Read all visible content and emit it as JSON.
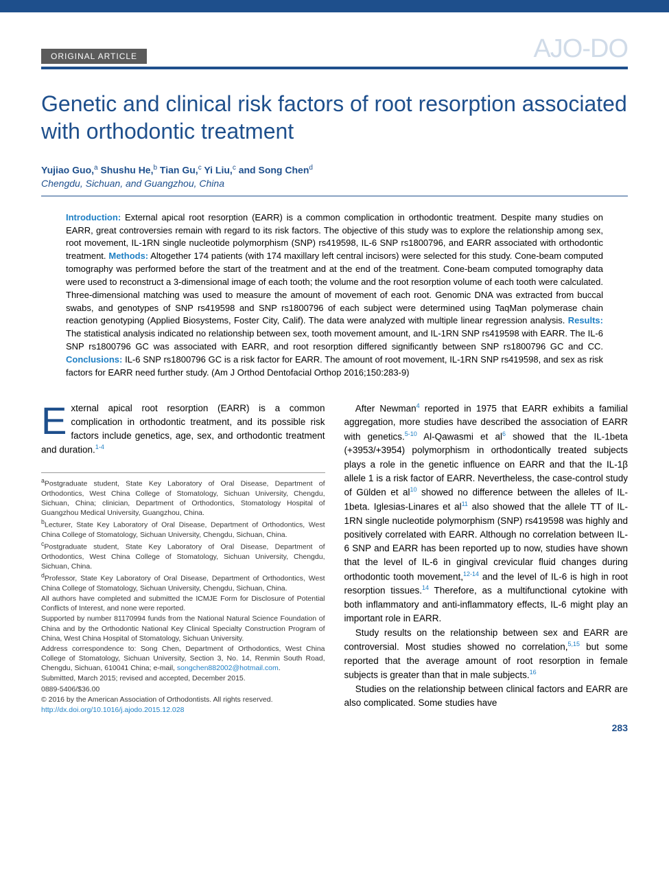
{
  "header": {
    "badge": "ORIGINAL ARTICLE",
    "journal_logo": "AJO-DO"
  },
  "title": "Genetic and clinical risk factors of root resorption associated with orthodontic treatment",
  "authors_html": "Yujiao Guo,<sup>a</sup> Shushu He,<sup>b</sup> Tian Gu,<sup>c</sup> Yi Liu,<sup>c</sup> and Song Chen<sup>d</sup>",
  "affil_line": "Chengdu, Sichuan, and Guangzhou, China",
  "abstract": {
    "introduction_label": "Introduction:",
    "introduction": " External apical root resorption (EARR) is a common complication in orthodontic treatment. Despite many studies on EARR, great controversies remain with regard to its risk factors. The objective of this study was to explore the relationship among sex, root movement, IL-1RN single nucleotide polymorphism (SNP) rs419598, IL-6 SNP rs1800796, and EARR associated with orthodontic treatment. ",
    "methods_label": "Methods:",
    "methods": " Altogether 174 patients (with 174 maxillary left central incisors) were selected for this study. Cone-beam computed tomography was performed before the start of the treatment and at the end of the treatment. Cone-beam computed tomography data were used to reconstruct a 3-dimensional image of each tooth; the volume and the root resorption volume of each tooth were calculated. Three-dimensional matching was used to measure the amount of movement of each root. Genomic DNA was extracted from buccal swabs, and genotypes of SNP rs419598 and SNP rs1800796 of each subject were determined using TaqMan polymerase chain reaction genotyping (Applied Biosystems, Foster City, Calif). The data were analyzed with multiple linear regression analysis. ",
    "results_label": "Results:",
    "results": " The statistical analysis indicated no relationship between sex, tooth movement amount, and IL-1RN SNP rs419598 with EARR. The IL-6 SNP rs1800796 GC was associated with EARR, and root resorption differed significantly between SNP rs1800796 GC and CC. ",
    "conclusions_label": "Conclusions:",
    "conclusions": " IL-6 SNP rs1800796 GC is a risk factor for EARR. The amount of root movement, IL-1RN SNP rs419598, and sex as risk factors for EARR need further study. (Am J Orthod Dentofacial Orthop 2016;150:283-9)"
  },
  "body": {
    "dropcap": "E",
    "left_p1": "xternal apical root resorption (EARR) is a common complication in orthodontic treatment, and its possible risk factors include genetics, age, sex, and orthodontic treatment and duration.",
    "left_p1_ref": "1-4",
    "right_p1a": "After Newman",
    "right_p1_ref1": "4",
    "right_p1b": " reported in 1975 that EARR exhibits a familial aggregation, more studies have described the association of EARR with genetics.",
    "right_p1_ref2": "5-10",
    "right_p1c": " Al-Qawasmi et al",
    "right_p1_ref3": "6",
    "right_p1d": " showed that the IL-1beta (+3953/+3954) polymorphism in orthodontically treated subjects plays a role in the genetic influence on EARR and that the IL-1β allele 1 is a risk factor of EARR. Nevertheless, the case-control study of Gülden et al",
    "right_p1_ref4": "10",
    "right_p1e": " showed no difference between the alleles of IL-1beta. Iglesias-Linares et al",
    "right_p1_ref5": "11",
    "right_p1f": " also showed that the allele TT of IL-1RN single nucleotide polymorphism (SNP) rs419598 was highly and positively correlated with EARR. Although no correlation between IL-6 SNP and EARR has been reported up to now, studies have shown that the level of IL-6 in gingival crevicular fluid changes during orthodontic tooth movement,",
    "right_p1_ref6": "12-14",
    "right_p1g": " and the level of IL-6 is high in root resorption tissues.",
    "right_p1_ref7": "14",
    "right_p1h": " Therefore, as a multifunctional cytokine with both inflammatory and anti-inflammatory effects, IL-6 might play an important role in EARR.",
    "right_p2a": "Study results on the relationship between sex and EARR are controversial. Most studies showed no correlation,",
    "right_p2_ref1": "5,15",
    "right_p2b": " but some reported that the average amount of root resorption in female subjects is greater than that in male subjects.",
    "right_p2_ref2": "16",
    "right_p3": "Studies on the relationship between clinical factors and EARR are also complicated. Some studies have"
  },
  "footnotes": {
    "a": "Postgraduate student, State Key Laboratory of Oral Disease, Department of Orthodontics, West China College of Stomatology, Sichuan University, Chengdu, Sichuan, China; clinician, Department of Orthodontics, Stomatology Hospital of Guangzhou Medical University, Guangzhou, China.",
    "b": "Lecturer, State Key Laboratory of Oral Disease, Department of Orthodontics, West China College of Stomatology, Sichuan University, Chengdu, Sichuan, China.",
    "c": "Postgraduate student, State Key Laboratory of Oral Disease, Department of Orthodontics, West China College of Stomatology, Sichuan University, Chengdu, Sichuan, China.",
    "d": "Professor, State Key Laboratory of Oral Disease, Department of Orthodontics, West China College of Stomatology, Sichuan University, Chengdu, Sichuan, China.",
    "coi": "All authors have completed and submitted the ICMJE Form for Disclosure of Potential Conflicts of Interest, and none were reported.",
    "funding": "Supported by number 81170994 funds from the National Natural Science Foundation of China and by the Orthodontic National Key Clinical Specialty Construction Program of China, West China Hospital of Stomatology, Sichuan University.",
    "corr": "Address correspondence to: Song Chen, Department of Orthodontics, West China College of Stomatology, Sichuan University, Section 3, No. 14, Renmin South Road, Chengdu, Sichuan, 610041 China; e-mail, ",
    "email": "songchen882002@hotmail.com",
    "email_dot": ".",
    "submitted": "Submitted, March 2015; revised and accepted, December 2015.",
    "issn": "0889-5406/$36.00",
    "copyright": "© 2016 by the American Association of Orthodontists. All rights reserved.",
    "doi": "http://dx.doi.org/10.1016/j.ajodo.2015.12.028"
  },
  "page_number": "283",
  "colors": {
    "brand_blue": "#1e4f8c",
    "link_blue": "#1e7fc4",
    "badge_bg": "#5b5b5b",
    "logo_fill": "#d0dbe8"
  }
}
